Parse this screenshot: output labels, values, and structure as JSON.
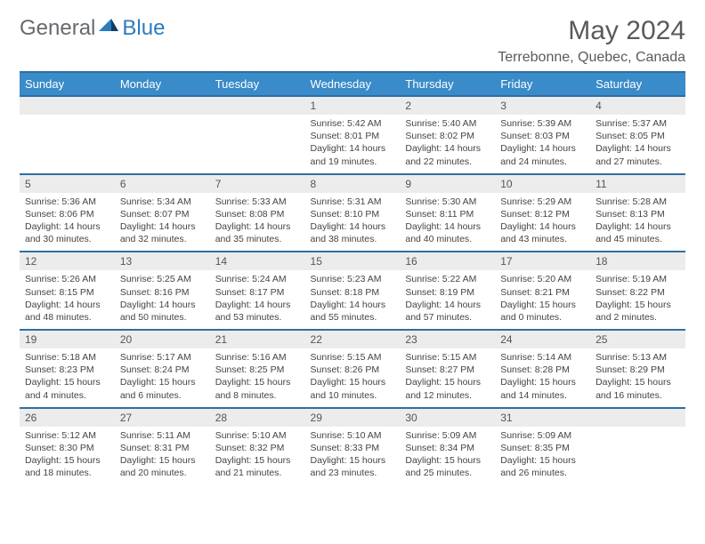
{
  "brand": {
    "part1": "General",
    "part2": "Blue"
  },
  "title": "May 2024",
  "location": "Terrebonne, Quebec, Canada",
  "day_headers": [
    "Sunday",
    "Monday",
    "Tuesday",
    "Wednesday",
    "Thursday",
    "Friday",
    "Saturday"
  ],
  "colors": {
    "header_bg": "#3a8bc9",
    "header_border": "#2f6fa3",
    "daynum_bg": "#ececec",
    "text": "#444444",
    "title_text": "#5a5a5a",
    "logo_gray": "#666a6e",
    "logo_blue": "#2b7bbf"
  },
  "weeks": [
    [
      null,
      null,
      null,
      {
        "n": "1",
        "sunrise": "5:42 AM",
        "sunset": "8:01 PM",
        "dl1": "Daylight: 14 hours",
        "dl2": "and 19 minutes."
      },
      {
        "n": "2",
        "sunrise": "5:40 AM",
        "sunset": "8:02 PM",
        "dl1": "Daylight: 14 hours",
        "dl2": "and 22 minutes."
      },
      {
        "n": "3",
        "sunrise": "5:39 AM",
        "sunset": "8:03 PM",
        "dl1": "Daylight: 14 hours",
        "dl2": "and 24 minutes."
      },
      {
        "n": "4",
        "sunrise": "5:37 AM",
        "sunset": "8:05 PM",
        "dl1": "Daylight: 14 hours",
        "dl2": "and 27 minutes."
      }
    ],
    [
      {
        "n": "5",
        "sunrise": "5:36 AM",
        "sunset": "8:06 PM",
        "dl1": "Daylight: 14 hours",
        "dl2": "and 30 minutes."
      },
      {
        "n": "6",
        "sunrise": "5:34 AM",
        "sunset": "8:07 PM",
        "dl1": "Daylight: 14 hours",
        "dl2": "and 32 minutes."
      },
      {
        "n": "7",
        "sunrise": "5:33 AM",
        "sunset": "8:08 PM",
        "dl1": "Daylight: 14 hours",
        "dl2": "and 35 minutes."
      },
      {
        "n": "8",
        "sunrise": "5:31 AM",
        "sunset": "8:10 PM",
        "dl1": "Daylight: 14 hours",
        "dl2": "and 38 minutes."
      },
      {
        "n": "9",
        "sunrise": "5:30 AM",
        "sunset": "8:11 PM",
        "dl1": "Daylight: 14 hours",
        "dl2": "and 40 minutes."
      },
      {
        "n": "10",
        "sunrise": "5:29 AM",
        "sunset": "8:12 PM",
        "dl1": "Daylight: 14 hours",
        "dl2": "and 43 minutes."
      },
      {
        "n": "11",
        "sunrise": "5:28 AM",
        "sunset": "8:13 PM",
        "dl1": "Daylight: 14 hours",
        "dl2": "and 45 minutes."
      }
    ],
    [
      {
        "n": "12",
        "sunrise": "5:26 AM",
        "sunset": "8:15 PM",
        "dl1": "Daylight: 14 hours",
        "dl2": "and 48 minutes."
      },
      {
        "n": "13",
        "sunrise": "5:25 AM",
        "sunset": "8:16 PM",
        "dl1": "Daylight: 14 hours",
        "dl2": "and 50 minutes."
      },
      {
        "n": "14",
        "sunrise": "5:24 AM",
        "sunset": "8:17 PM",
        "dl1": "Daylight: 14 hours",
        "dl2": "and 53 minutes."
      },
      {
        "n": "15",
        "sunrise": "5:23 AM",
        "sunset": "8:18 PM",
        "dl1": "Daylight: 14 hours",
        "dl2": "and 55 minutes."
      },
      {
        "n": "16",
        "sunrise": "5:22 AM",
        "sunset": "8:19 PM",
        "dl1": "Daylight: 14 hours",
        "dl2": "and 57 minutes."
      },
      {
        "n": "17",
        "sunrise": "5:20 AM",
        "sunset": "8:21 PM",
        "dl1": "Daylight: 15 hours",
        "dl2": "and 0 minutes."
      },
      {
        "n": "18",
        "sunrise": "5:19 AM",
        "sunset": "8:22 PM",
        "dl1": "Daylight: 15 hours",
        "dl2": "and 2 minutes."
      }
    ],
    [
      {
        "n": "19",
        "sunrise": "5:18 AM",
        "sunset": "8:23 PM",
        "dl1": "Daylight: 15 hours",
        "dl2": "and 4 minutes."
      },
      {
        "n": "20",
        "sunrise": "5:17 AM",
        "sunset": "8:24 PM",
        "dl1": "Daylight: 15 hours",
        "dl2": "and 6 minutes."
      },
      {
        "n": "21",
        "sunrise": "5:16 AM",
        "sunset": "8:25 PM",
        "dl1": "Daylight: 15 hours",
        "dl2": "and 8 minutes."
      },
      {
        "n": "22",
        "sunrise": "5:15 AM",
        "sunset": "8:26 PM",
        "dl1": "Daylight: 15 hours",
        "dl2": "and 10 minutes."
      },
      {
        "n": "23",
        "sunrise": "5:15 AM",
        "sunset": "8:27 PM",
        "dl1": "Daylight: 15 hours",
        "dl2": "and 12 minutes."
      },
      {
        "n": "24",
        "sunrise": "5:14 AM",
        "sunset": "8:28 PM",
        "dl1": "Daylight: 15 hours",
        "dl2": "and 14 minutes."
      },
      {
        "n": "25",
        "sunrise": "5:13 AM",
        "sunset": "8:29 PM",
        "dl1": "Daylight: 15 hours",
        "dl2": "and 16 minutes."
      }
    ],
    [
      {
        "n": "26",
        "sunrise": "5:12 AM",
        "sunset": "8:30 PM",
        "dl1": "Daylight: 15 hours",
        "dl2": "and 18 minutes."
      },
      {
        "n": "27",
        "sunrise": "5:11 AM",
        "sunset": "8:31 PM",
        "dl1": "Daylight: 15 hours",
        "dl2": "and 20 minutes."
      },
      {
        "n": "28",
        "sunrise": "5:10 AM",
        "sunset": "8:32 PM",
        "dl1": "Daylight: 15 hours",
        "dl2": "and 21 minutes."
      },
      {
        "n": "29",
        "sunrise": "5:10 AM",
        "sunset": "8:33 PM",
        "dl1": "Daylight: 15 hours",
        "dl2": "and 23 minutes."
      },
      {
        "n": "30",
        "sunrise": "5:09 AM",
        "sunset": "8:34 PM",
        "dl1": "Daylight: 15 hours",
        "dl2": "and 25 minutes."
      },
      {
        "n": "31",
        "sunrise": "5:09 AM",
        "sunset": "8:35 PM",
        "dl1": "Daylight: 15 hours",
        "dl2": "and 26 minutes."
      },
      null
    ]
  ],
  "labels": {
    "sunrise": "Sunrise: ",
    "sunset": "Sunset: "
  }
}
